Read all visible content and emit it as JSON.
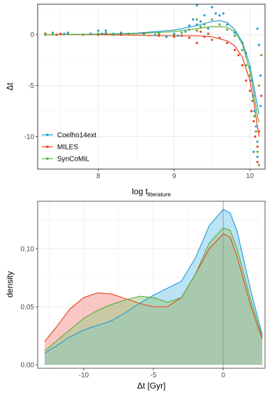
{
  "chart_data": [
    {
      "type": "scatter",
      "xlabel": "log t",
      "xlabel_sub": "literature",
      "ylabel": "Δt",
      "xlim": [
        7.2,
        10.2
      ],
      "ylim": [
        -13.2,
        3.0
      ],
      "x_ticks": [
        {
          "value": 8,
          "label": "8"
        },
        {
          "value": 9,
          "label": "9"
        },
        {
          "value": 10,
          "label": "10"
        }
      ],
      "y_ticks": [
        {
          "value": 0,
          "label": "0"
        },
        {
          "value": -5,
          "label": "-5"
        },
        {
          "value": -10,
          "label": "-10"
        }
      ],
      "grid": true,
      "legend_position": "bottom-left",
      "series": [
        {
          "name": "Coelho14ext",
          "color": "#1f9bd7",
          "points": [
            [
              7.3,
              0.1
            ],
            [
              7.4,
              0.2
            ],
            [
              7.55,
              0.1
            ],
            [
              7.6,
              0.2
            ],
            [
              7.9,
              0.1
            ],
            [
              8.0,
              0.4
            ],
            [
              8.05,
              0.1
            ],
            [
              8.1,
              0.4
            ],
            [
              8.2,
              0.1
            ],
            [
              8.3,
              0.2
            ],
            [
              8.4,
              0.1
            ],
            [
              8.6,
              0.1
            ],
            [
              8.75,
              0.0
            ],
            [
              8.8,
              0.1
            ],
            [
              8.9,
              -0.2
            ],
            [
              9.0,
              0.1
            ],
            [
              9.05,
              -0.1
            ],
            [
              9.15,
              0.3
            ],
            [
              9.2,
              0.9
            ],
            [
              9.25,
              1.5
            ],
            [
              9.3,
              2.9
            ],
            [
              9.3,
              1.0
            ],
            [
              9.35,
              1.3
            ],
            [
              9.4,
              1.9
            ],
            [
              9.45,
              0.6
            ],
            [
              9.5,
              2.7
            ],
            [
              9.55,
              2.1
            ],
            [
              9.6,
              1.9
            ],
            [
              9.65,
              2.1
            ],
            [
              9.7,
              1.0
            ],
            [
              9.8,
              0.2
            ],
            [
              9.9,
              -0.8
            ],
            [
              9.95,
              -1.8
            ],
            [
              10.0,
              -3.2
            ],
            [
              10.02,
              -4.5
            ],
            [
              10.04,
              -6.0
            ],
            [
              10.06,
              -7.5
            ],
            [
              10.08,
              -9.0
            ],
            [
              10.1,
              -10.5
            ],
            [
              10.1,
              0.6
            ],
            [
              10.12,
              -1.0
            ],
            [
              10.14,
              -4.0
            ],
            [
              10.05,
              -11.5
            ],
            [
              10.1,
              -12.0
            ],
            [
              10.14,
              -7.0
            ]
          ],
          "curve": [
            [
              7.3,
              0.0
            ],
            [
              8.0,
              0.05
            ],
            [
              8.5,
              0.15
            ],
            [
              9.0,
              0.45
            ],
            [
              9.3,
              0.9
            ],
            [
              9.5,
              1.3
            ],
            [
              9.6,
              1.4
            ],
            [
              9.7,
              1.2
            ],
            [
              9.8,
              0.5
            ],
            [
              9.9,
              -0.7
            ],
            [
              10.0,
              -3.0
            ],
            [
              10.05,
              -5.0
            ],
            [
              10.1,
              -7.0
            ],
            [
              10.12,
              -7.8
            ]
          ]
        },
        {
          "name": "MILES",
          "color": "#e8401c",
          "points": [
            [
              7.3,
              0.1
            ],
            [
              7.45,
              0.0
            ],
            [
              7.5,
              0.1
            ],
            [
              7.8,
              0.0
            ],
            [
              8.0,
              0.0
            ],
            [
              8.1,
              0.1
            ],
            [
              8.3,
              0.0
            ],
            [
              8.6,
              0.1
            ],
            [
              8.8,
              -0.1
            ],
            [
              9.0,
              -0.2
            ],
            [
              9.1,
              -0.1
            ],
            [
              9.2,
              -0.3
            ],
            [
              9.3,
              0.4
            ],
            [
              9.3,
              -0.8
            ],
            [
              9.35,
              0.3
            ],
            [
              9.4,
              -0.2
            ],
            [
              9.45,
              0.1
            ],
            [
              9.5,
              -0.5
            ],
            [
              9.6,
              -0.3
            ],
            [
              9.7,
              -0.8
            ],
            [
              9.8,
              -1.5
            ],
            [
              9.85,
              -2.0
            ],
            [
              9.9,
              -3.0
            ],
            [
              9.95,
              -4.5
            ],
            [
              10.0,
              -5.5
            ],
            [
              10.02,
              -7.5
            ],
            [
              10.05,
              -8.5
            ],
            [
              10.07,
              -10.0
            ],
            [
              10.1,
              -11.0
            ],
            [
              10.1,
              -12.5
            ],
            [
              10.12,
              -9.5
            ],
            [
              10.15,
              -6.0
            ]
          ],
          "curve": [
            [
              7.3,
              0.0
            ],
            [
              8.0,
              0.0
            ],
            [
              8.5,
              -0.05
            ],
            [
              9.0,
              -0.1
            ],
            [
              9.3,
              -0.1
            ],
            [
              9.5,
              -0.2
            ],
            [
              9.7,
              -0.6
            ],
            [
              9.8,
              -1.1
            ],
            [
              9.9,
              -2.2
            ],
            [
              10.0,
              -4.5
            ],
            [
              10.05,
              -6.5
            ],
            [
              10.1,
              -9.0
            ],
            [
              10.12,
              -10.0
            ]
          ]
        },
        {
          "name": "SynCoMiL",
          "color": "#5dab3a",
          "points": [
            [
              7.3,
              0.0
            ],
            [
              7.4,
              0.1
            ],
            [
              7.6,
              0.1
            ],
            [
              7.8,
              0.0
            ],
            [
              8.0,
              0.1
            ],
            [
              8.1,
              0.2
            ],
            [
              8.2,
              0.0
            ],
            [
              8.4,
              0.1
            ],
            [
              8.6,
              0.0
            ],
            [
              8.8,
              0.1
            ],
            [
              9.0,
              0.0
            ],
            [
              9.1,
              0.2
            ],
            [
              9.2,
              0.5
            ],
            [
              9.3,
              1.5
            ],
            [
              9.3,
              0.4
            ],
            [
              9.35,
              0.8
            ],
            [
              9.4,
              1.0
            ],
            [
              9.5,
              1.5
            ],
            [
              9.6,
              1.0
            ],
            [
              9.7,
              0.5
            ],
            [
              9.8,
              -0.1
            ],
            [
              9.9,
              -1.5
            ],
            [
              9.95,
              -3.0
            ],
            [
              10.0,
              -4.0
            ],
            [
              10.03,
              -6.5
            ],
            [
              10.06,
              -8.0
            ],
            [
              10.08,
              -9.5
            ],
            [
              10.1,
              -11.5
            ],
            [
              10.12,
              -12.8
            ],
            [
              10.12,
              -5.0
            ],
            [
              10.15,
              -2.0
            ]
          ],
          "curve": [
            [
              7.3,
              0.0
            ],
            [
              8.0,
              0.05
            ],
            [
              8.5,
              0.1
            ],
            [
              9.0,
              0.3
            ],
            [
              9.3,
              0.6
            ],
            [
              9.5,
              0.8
            ],
            [
              9.7,
              0.75
            ],
            [
              9.8,
              0.3
            ],
            [
              9.9,
              -0.9
            ],
            [
              10.0,
              -3.6
            ],
            [
              10.05,
              -5.6
            ],
            [
              10.1,
              -8.0
            ],
            [
              10.12,
              -8.6
            ]
          ]
        }
      ]
    },
    {
      "type": "area",
      "xlabel": "Δt [Gyr]",
      "ylabel": "density",
      "xlim": [
        -13.3,
        3.0
      ],
      "ylim": [
        -0.003,
        0.141
      ],
      "x_ticks": [
        {
          "value": -10,
          "label": "-10"
        },
        {
          "value": -5,
          "label": "-5"
        },
        {
          "value": 0,
          "label": "0"
        }
      ],
      "y_ticks": [
        {
          "value": 0.0,
          "label": "0.00"
        },
        {
          "value": 0.05,
          "label": "0.05"
        },
        {
          "value": 0.1,
          "label": "0.10"
        }
      ],
      "vline": 0,
      "grid": true,
      "series": [
        {
          "name": "MILES",
          "fill": "#f3908a",
          "stroke": "#e8401c",
          "points": [
            [
              -12.8,
              0.02
            ],
            [
              -12,
              0.032
            ],
            [
              -11,
              0.048
            ],
            [
              -10,
              0.058
            ],
            [
              -9,
              0.062
            ],
            [
              -8,
              0.061
            ],
            [
              -7,
              0.057
            ],
            [
              -6,
              0.053
            ],
            [
              -5,
              0.05
            ],
            [
              -4,
              0.05
            ],
            [
              -3,
              0.058
            ],
            [
              -2,
              0.078
            ],
            [
              -1,
              0.1
            ],
            [
              0,
              0.113
            ],
            [
              0.5,
              0.11
            ],
            [
              1,
              0.093
            ],
            [
              2,
              0.05
            ],
            [
              2.8,
              0.022
            ]
          ]
        },
        {
          "name": "Coelho14ext",
          "fill": "#75c8ec",
          "stroke": "#1f9bd7",
          "points": [
            [
              -12.8,
              0.01
            ],
            [
              -12,
              0.016
            ],
            [
              -11,
              0.024
            ],
            [
              -10,
              0.03
            ],
            [
              -9,
              0.034
            ],
            [
              -8,
              0.038
            ],
            [
              -7,
              0.045
            ],
            [
              -6,
              0.053
            ],
            [
              -5,
              0.06
            ],
            [
              -4,
              0.066
            ],
            [
              -3,
              0.072
            ],
            [
              -2,
              0.092
            ],
            [
              -1,
              0.12
            ],
            [
              0,
              0.134
            ],
            [
              0.5,
              0.131
            ],
            [
              1,
              0.115
            ],
            [
              2,
              0.063
            ],
            [
              2.8,
              0.026
            ]
          ]
        },
        {
          "name": "SynCoMiL",
          "fill": "#99cc82",
          "stroke": "#5dab3a",
          "points": [
            [
              -12.8,
              0.012
            ],
            [
              -12,
              0.02
            ],
            [
              -11,
              0.03
            ],
            [
              -10,
              0.04
            ],
            [
              -9,
              0.047
            ],
            [
              -8,
              0.052
            ],
            [
              -7,
              0.056
            ],
            [
              -6,
              0.059
            ],
            [
              -5,
              0.058
            ],
            [
              -4,
              0.054
            ],
            [
              -3,
              0.058
            ],
            [
              -2,
              0.078
            ],
            [
              -1,
              0.105
            ],
            [
              0,
              0.118
            ],
            [
              0.5,
              0.116
            ],
            [
              1,
              0.1
            ],
            [
              2,
              0.055
            ],
            [
              2.8,
              0.024
            ]
          ]
        }
      ]
    }
  ]
}
